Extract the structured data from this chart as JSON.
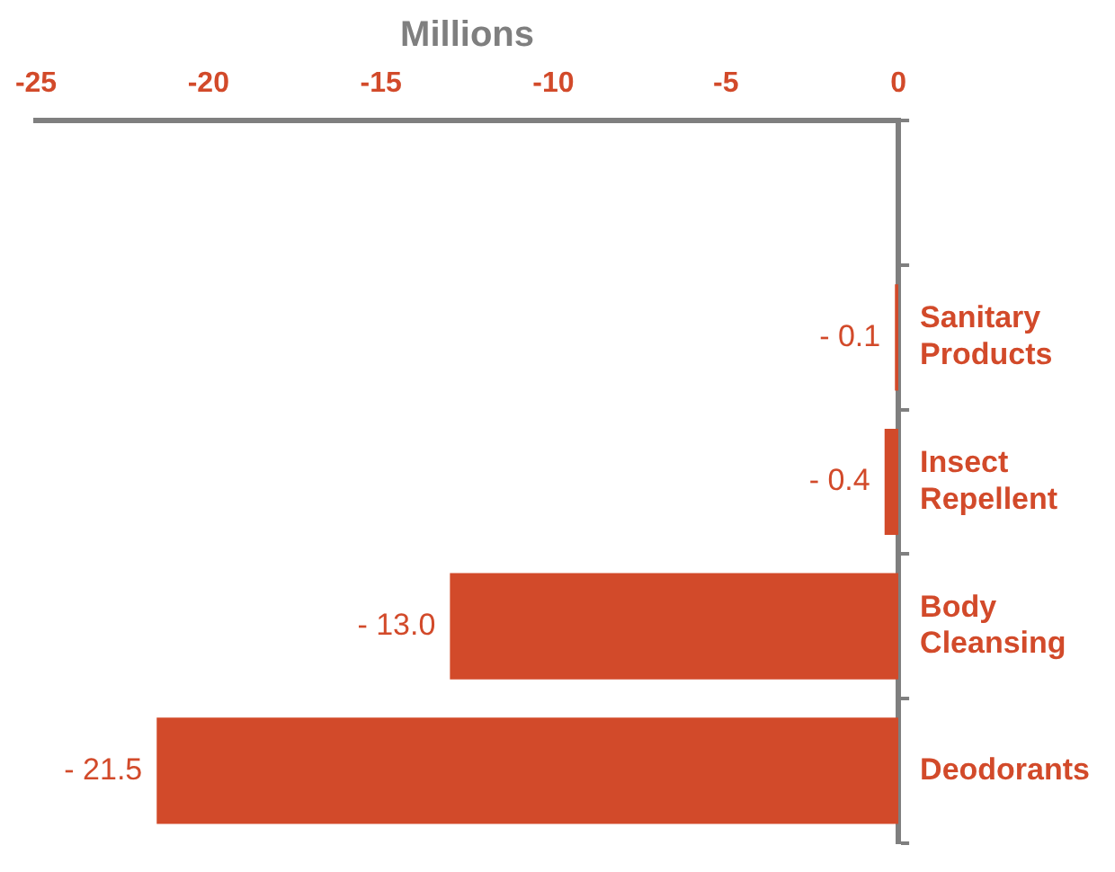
{
  "chart_data": {
    "type": "bar",
    "orientation": "horizontal",
    "xlabel": "Millions",
    "categories": [
      null,
      "Sanitary Products",
      "Insect Repellent",
      "Body Cleansing",
      "Deodorants"
    ],
    "values": [
      null,
      -0.1,
      -0.4,
      -13.0,
      -21.5
    ],
    "value_labels": [
      null,
      "- 0.1",
      "- 0.4",
      "- 13.0",
      "- 21.5"
    ],
    "color": "#d24a2a",
    "xlim": [
      -25,
      0
    ],
    "xticks": [
      -25,
      -20,
      -15,
      -10,
      -5,
      0
    ],
    "grid": false,
    "legend": false
  }
}
